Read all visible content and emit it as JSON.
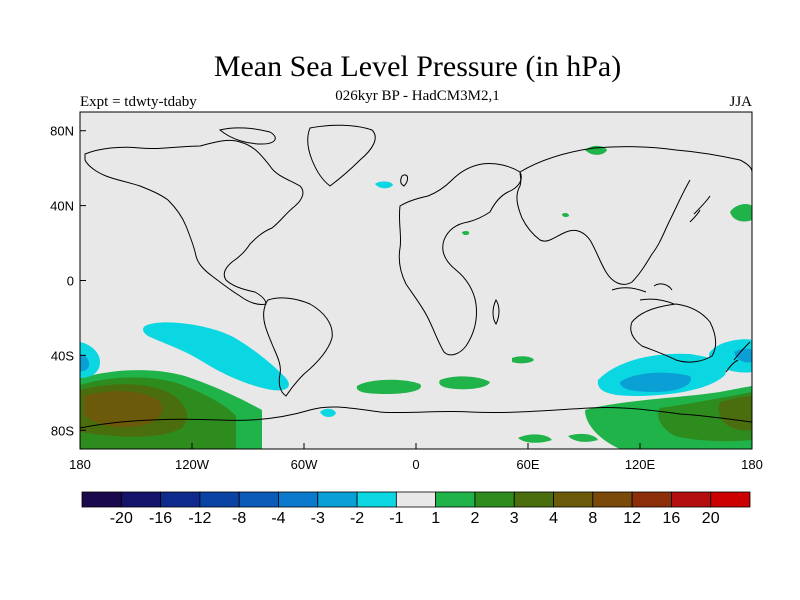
{
  "title": "Mean Sea Level Pressure (in hPa)",
  "subtitle": "026kyr BP - HadCM3M2,1",
  "left_label": "Expt = tdwty-tdaby",
  "right_label": "JJA",
  "map": {
    "lon_range": [
      -180,
      180
    ],
    "lat_range": [
      -90,
      90
    ],
    "land_color": "#e8e8e8",
    "x_ticks": [
      {
        "value": -180,
        "label": "180"
      },
      {
        "value": -120,
        "label": "120W"
      },
      {
        "value": -60,
        "label": "60W"
      },
      {
        "value": 0,
        "label": "0"
      },
      {
        "value": 60,
        "label": "60E"
      },
      {
        "value": 120,
        "label": "120E"
      },
      {
        "value": 180,
        "label": "180"
      }
    ],
    "y_ticks": [
      {
        "value": 80,
        "label": "80N"
      },
      {
        "value": 40,
        "label": "40N"
      },
      {
        "value": 0,
        "label": "0"
      },
      {
        "value": -40,
        "label": "40S"
      },
      {
        "value": -80,
        "label": "80S"
      }
    ]
  },
  "colorbar": {
    "colors": [
      "#1a0a4d",
      "#14146b",
      "#0d2a8c",
      "#0a43a3",
      "#0a5cb8",
      "#0a7acc",
      "#0aa0d6",
      "#0ad7e1",
      "#e8e8e8",
      "#1fb34a",
      "#2e8c1f",
      "#4a6e0d",
      "#6b5a0a",
      "#7a4a0a",
      "#8c2e0a",
      "#b30f0f",
      "#cc0000"
    ],
    "labels": [
      "-20",
      "-16",
      "-12",
      "-8",
      "-4",
      "-3",
      "-2",
      "-1",
      "1",
      "2",
      "3",
      "4",
      "8",
      "12",
      "16",
      "20"
    ]
  }
}
